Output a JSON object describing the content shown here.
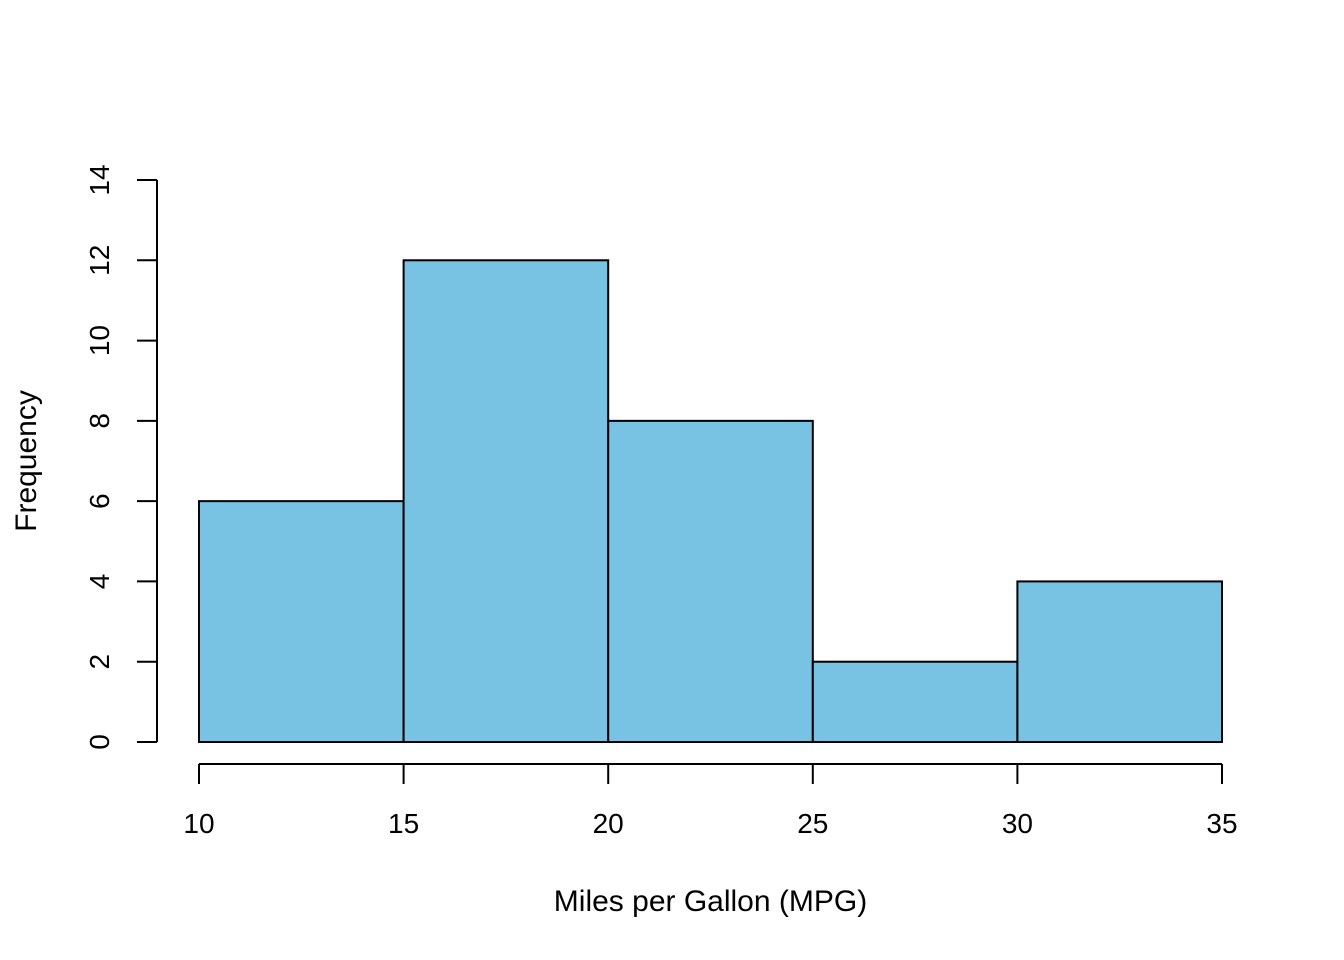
{
  "chart_data": {
    "type": "bar",
    "subtype": "histogram",
    "bins": [
      {
        "start": 10,
        "end": 15,
        "count": 6
      },
      {
        "start": 15,
        "end": 20,
        "count": 12
      },
      {
        "start": 20,
        "end": 25,
        "count": 8
      },
      {
        "start": 25,
        "end": 30,
        "count": 2
      },
      {
        "start": 30,
        "end": 35,
        "count": 4
      }
    ],
    "title": "",
    "xlabel": "Miles per Gallon (MPG)",
    "ylabel": "Frequency",
    "xlim": [
      10,
      35
    ],
    "ylim": [
      0,
      14
    ],
    "x_ticks": [
      "10",
      "15",
      "20",
      "25",
      "30",
      "35"
    ],
    "y_ticks": [
      "0",
      "2",
      "4",
      "6",
      "8",
      "10",
      "12",
      "14"
    ],
    "grid": false,
    "colors": {
      "bar_fill": "#78C2E4",
      "bar_stroke": "#000000",
      "axis": "#000000"
    }
  }
}
